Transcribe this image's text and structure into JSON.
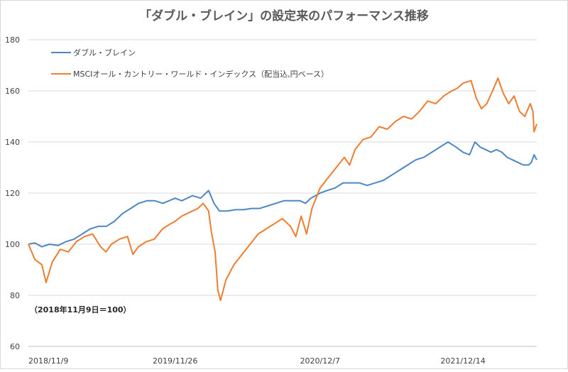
{
  "chart_data": {
    "type": "line",
    "title": "「ダブル・ブレイン」の設定来のパフォーマンス推移",
    "xlabel": "",
    "ylabel": "",
    "annotation": "（2018年11月9日＝100）",
    "ylim": [
      60,
      180
    ],
    "yticks": [
      60,
      80,
      100,
      120,
      140,
      160,
      180
    ],
    "x_tick_labels": [
      "2018/11/9",
      "2019/11/26",
      "2020/12/7",
      "2021/12/14"
    ],
    "grid": "horizontal",
    "legend_position": "top-left",
    "series": [
      {
        "name": "ダブル・ブレイン",
        "color": "#4e86c4",
        "x": [
          "2018-11-09",
          "2018-11-26",
          "2018-12-14",
          "2019-01-03",
          "2019-01-25",
          "2019-02-15",
          "2019-03-08",
          "2019-03-29",
          "2019-04-19",
          "2019-05-10",
          "2019-05-31",
          "2019-06-21",
          "2019-07-12",
          "2019-08-02",
          "2019-08-23",
          "2019-09-13",
          "2019-10-04",
          "2019-10-25",
          "2019-11-26",
          "2019-12-13",
          "2020-01-10",
          "2020-01-31",
          "2020-02-14",
          "2020-02-21",
          "2020-03-06",
          "2020-03-20",
          "2020-04-10",
          "2020-05-01",
          "2020-05-22",
          "2020-06-12",
          "2020-07-03",
          "2020-07-24",
          "2020-08-14",
          "2020-09-04",
          "2020-09-25",
          "2020-10-16",
          "2020-10-30",
          "2020-11-13",
          "2020-12-07",
          "2020-12-25",
          "2021-01-15",
          "2021-02-05",
          "2021-02-26",
          "2021-03-19",
          "2021-04-09",
          "2021-04-30",
          "2021-05-21",
          "2021-06-11",
          "2021-07-02",
          "2021-07-23",
          "2021-08-13",
          "2021-09-03",
          "2021-09-24",
          "2021-10-15",
          "2021-11-05",
          "2021-11-26",
          "2021-12-14",
          "2021-12-31",
          "2022-01-14",
          "2022-01-28",
          "2022-02-11",
          "2022-02-25",
          "2022-03-11",
          "2022-03-25",
          "2022-04-08",
          "2022-04-22",
          "2022-05-06",
          "2022-05-20",
          "2022-06-03",
          "2022-06-10",
          "2022-06-17",
          "2022-06-24"
        ],
        "values": [
          100,
          100.5,
          99,
          100,
          99.5,
          101,
          102,
          104,
          106,
          107,
          107,
          109,
          112,
          114,
          116,
          117,
          117,
          116,
          118,
          117,
          119,
          118,
          120,
          121,
          116,
          113,
          113,
          113.5,
          113.5,
          114,
          114,
          115,
          116,
          117,
          117,
          117,
          116,
          118,
          120,
          121,
          122,
          124,
          124,
          124,
          123,
          124,
          125,
          127,
          129,
          131,
          133,
          134,
          136,
          138,
          140,
          138,
          136,
          135,
          140,
          138,
          137,
          136,
          137,
          136,
          134,
          133,
          132,
          131,
          131,
          132,
          135,
          133
        ]
      },
      {
        "name": "MSCIオール・カントリー・ワールド・インデックス（配当込,円ベース）",
        "color": "#ed7d31",
        "x": [
          "2018-11-09",
          "2018-11-26",
          "2018-12-14",
          "2018-12-25",
          "2019-01-10",
          "2019-01-31",
          "2019-02-21",
          "2019-03-14",
          "2019-04-04",
          "2019-04-25",
          "2019-05-16",
          "2019-05-30",
          "2019-06-13",
          "2019-07-04",
          "2019-07-25",
          "2019-08-08",
          "2019-08-22",
          "2019-09-12",
          "2019-10-03",
          "2019-10-24",
          "2019-11-14",
          "2019-11-26",
          "2019-12-13",
          "2020-01-10",
          "2020-01-24",
          "2020-02-07",
          "2020-02-21",
          "2020-02-28",
          "2020-03-09",
          "2020-03-16",
          "2020-03-23",
          "2020-04-06",
          "2020-04-27",
          "2020-05-18",
          "2020-06-08",
          "2020-06-29",
          "2020-07-20",
          "2020-08-10",
          "2020-08-31",
          "2020-09-21",
          "2020-10-05",
          "2020-10-19",
          "2020-11-02",
          "2020-11-16",
          "2020-12-07",
          "2020-12-28",
          "2021-01-18",
          "2021-02-08",
          "2021-02-22",
          "2021-03-08",
          "2021-03-29",
          "2021-04-19",
          "2021-05-10",
          "2021-05-31",
          "2021-06-21",
          "2021-07-12",
          "2021-08-02",
          "2021-08-23",
          "2021-09-13",
          "2021-10-04",
          "2021-10-25",
          "2021-11-15",
          "2021-11-29",
          "2021-12-14",
          "2022-01-04",
          "2022-01-18",
          "2022-01-31",
          "2022-02-14",
          "2022-03-01",
          "2022-03-15",
          "2022-03-29",
          "2022-04-12",
          "2022-04-26",
          "2022-05-10",
          "2022-05-24",
          "2022-06-07",
          "2022-06-14",
          "2022-06-17",
          "2022-06-24"
        ],
        "values": [
          100,
          94,
          92,
          85,
          93,
          98,
          97,
          101,
          103,
          104,
          99,
          97,
          100,
          102,
          103,
          96,
          99,
          101,
          102,
          106,
          108,
          109,
          111,
          113,
          114,
          116,
          113,
          105,
          97,
          82,
          78,
          86,
          92,
          96,
          100,
          104,
          106,
          108,
          110,
          107,
          103,
          111,
          104,
          114,
          122,
          126,
          130,
          134,
          131,
          137,
          141,
          142,
          146,
          145,
          148,
          150,
          149,
          152,
          156,
          155,
          158,
          160,
          161,
          163,
          164,
          157,
          153,
          155,
          160,
          165,
          159,
          155,
          158,
          152,
          150,
          155,
          152,
          144,
          147
        ]
      }
    ]
  }
}
